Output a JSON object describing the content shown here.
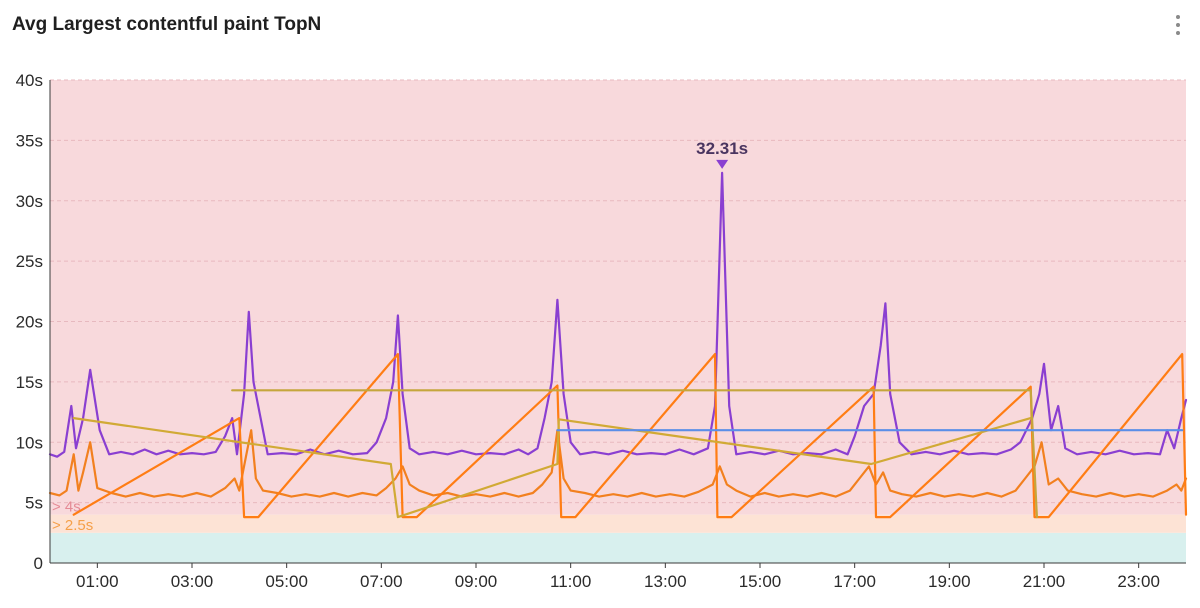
{
  "header": {
    "title": "Avg Largest contentful paint TopN",
    "menu_icon": "more-vertical-icon"
  },
  "chart_data": {
    "type": "line",
    "title": "Avg Largest contentful paint TopN",
    "xlabel": "",
    "ylabel": "",
    "x_unit": "hours",
    "xlim": [
      0,
      24
    ],
    "ylim": [
      0,
      40
    ],
    "x_ticks": [
      {
        "value": 1,
        "label": "01:00"
      },
      {
        "value": 3,
        "label": "03:00"
      },
      {
        "value": 5,
        "label": "05:00"
      },
      {
        "value": 7,
        "label": "07:00"
      },
      {
        "value": 9,
        "label": "09:00"
      },
      {
        "value": 11,
        "label": "11:00"
      },
      {
        "value": 13,
        "label": "13:00"
      },
      {
        "value": 15,
        "label": "15:00"
      },
      {
        "value": 17,
        "label": "17:00"
      },
      {
        "value": 19,
        "label": "19:00"
      },
      {
        "value": 21,
        "label": "21:00"
      },
      {
        "value": 23,
        "label": "23:00"
      }
    ],
    "y_ticks": [
      {
        "value": 0,
        "label": "0"
      },
      {
        "value": 5,
        "label": "5s"
      },
      {
        "value": 10,
        "label": "10s"
      },
      {
        "value": 15,
        "label": "15s"
      },
      {
        "value": 20,
        "label": "20s"
      },
      {
        "value": 25,
        "label": "25s"
      },
      {
        "value": 30,
        "label": "30s"
      },
      {
        "value": 35,
        "label": "35s"
      },
      {
        "value": 40,
        "label": "40s"
      }
    ],
    "grid": true,
    "bands": [
      {
        "from": 0,
        "to": 2.5,
        "color": "#d8f0ee"
      },
      {
        "from": 2.5,
        "to": 4,
        "color": "#fde3d5",
        "label": "> 2.5s",
        "label_color": "#f5a04a"
      },
      {
        "from": 4,
        "to": 40,
        "color": "#f8d9dc",
        "label": "> 4s",
        "label_color": "#e58a95"
      }
    ],
    "peak": {
      "x": 14.2,
      "y": 32.31,
      "label": "32.31s",
      "color": "#8a3fd1"
    },
    "series": [
      {
        "color": "#8a3fd1",
        "points": [
          [
            0,
            9
          ],
          [
            0.15,
            8.8
          ],
          [
            0.3,
            9.2
          ],
          [
            0.45,
            13
          ],
          [
            0.55,
            9.5
          ],
          [
            0.7,
            12
          ],
          [
            0.85,
            16
          ],
          [
            1.05,
            11
          ],
          [
            1.25,
            9
          ],
          [
            1.5,
            9.2
          ],
          [
            1.75,
            9
          ],
          [
            2,
            9.4
          ],
          [
            2.25,
            9
          ],
          [
            2.5,
            9.3
          ],
          [
            2.75,
            9
          ],
          [
            3,
            9.1
          ],
          [
            3.25,
            9
          ],
          [
            3.5,
            9.2
          ],
          [
            3.7,
            10.5
          ],
          [
            3.85,
            12
          ],
          [
            3.95,
            9
          ],
          [
            4.1,
            14
          ],
          [
            4.2,
            20.8
          ],
          [
            4.3,
            15
          ],
          [
            4.45,
            12
          ],
          [
            4.6,
            9
          ],
          [
            4.9,
            9.1
          ],
          [
            5.2,
            9
          ],
          [
            5.5,
            9.4
          ],
          [
            5.8,
            9
          ],
          [
            6.1,
            9.3
          ],
          [
            6.4,
            9
          ],
          [
            6.7,
            9.1
          ],
          [
            6.9,
            10
          ],
          [
            7.1,
            12
          ],
          [
            7.25,
            15
          ],
          [
            7.35,
            20.5
          ],
          [
            7.45,
            14
          ],
          [
            7.6,
            9.5
          ],
          [
            7.8,
            9
          ],
          [
            8.1,
            9.2
          ],
          [
            8.4,
            9
          ],
          [
            8.7,
            9.3
          ],
          [
            9,
            9
          ],
          [
            9.3,
            9.1
          ],
          [
            9.6,
            9
          ],
          [
            9.9,
            9.4
          ],
          [
            10.1,
            9
          ],
          [
            10.3,
            9.5
          ],
          [
            10.45,
            12
          ],
          [
            10.6,
            15
          ],
          [
            10.72,
            21.8
          ],
          [
            10.85,
            14
          ],
          [
            11,
            10
          ],
          [
            11.2,
            9
          ],
          [
            11.5,
            9.2
          ],
          [
            11.8,
            9
          ],
          [
            12.1,
            9.3
          ],
          [
            12.4,
            9
          ],
          [
            12.7,
            9.1
          ],
          [
            13,
            9
          ],
          [
            13.3,
            9.4
          ],
          [
            13.6,
            9
          ],
          [
            13.9,
            9.5
          ],
          [
            14.05,
            13
          ],
          [
            14.2,
            32.31
          ],
          [
            14.35,
            13
          ],
          [
            14.5,
            9
          ],
          [
            14.8,
            9.2
          ],
          [
            15.1,
            9
          ],
          [
            15.4,
            9.3
          ],
          [
            15.7,
            9
          ],
          [
            16,
            9.1
          ],
          [
            16.3,
            9
          ],
          [
            16.6,
            9.4
          ],
          [
            16.85,
            9
          ],
          [
            17,
            10.5
          ],
          [
            17.2,
            13
          ],
          [
            17.4,
            14
          ],
          [
            17.55,
            18
          ],
          [
            17.65,
            21.5
          ],
          [
            17.75,
            14
          ],
          [
            17.95,
            10
          ],
          [
            18.2,
            9
          ],
          [
            18.5,
            9.2
          ],
          [
            18.8,
            9
          ],
          [
            19.1,
            9.3
          ],
          [
            19.4,
            9
          ],
          [
            19.7,
            9.1
          ],
          [
            20,
            9
          ],
          [
            20.3,
            9.4
          ],
          [
            20.5,
            10
          ],
          [
            20.75,
            12
          ],
          [
            20.9,
            14
          ],
          [
            21,
            16.5
          ],
          [
            21.15,
            11
          ],
          [
            21.3,
            13
          ],
          [
            21.45,
            9.5
          ],
          [
            21.7,
            9
          ],
          [
            22,
            9.2
          ],
          [
            22.3,
            9
          ],
          [
            22.6,
            9.3
          ],
          [
            22.9,
            9
          ],
          [
            23.2,
            9.1
          ],
          [
            23.45,
            9
          ],
          [
            23.6,
            11
          ],
          [
            23.75,
            9.5
          ],
          [
            23.9,
            12
          ],
          [
            24,
            13.5
          ]
        ]
      },
      {
        "color": "#f2801f",
        "points": [
          [
            0,
            5.8
          ],
          [
            0.2,
            5.6
          ],
          [
            0.35,
            6
          ],
          [
            0.5,
            9
          ],
          [
            0.6,
            6
          ],
          [
            0.7,
            7.5
          ],
          [
            0.85,
            10
          ],
          [
            1,
            6.2
          ],
          [
            1.3,
            5.8
          ],
          [
            1.6,
            5.5
          ],
          [
            1.9,
            5.8
          ],
          [
            2.2,
            5.5
          ],
          [
            2.5,
            5.7
          ],
          [
            2.8,
            5.5
          ],
          [
            3.1,
            5.8
          ],
          [
            3.4,
            5.5
          ],
          [
            3.7,
            6.2
          ],
          [
            3.9,
            7
          ],
          [
            4,
            6
          ],
          [
            4.15,
            9
          ],
          [
            4.25,
            11
          ],
          [
            4.35,
            7
          ],
          [
            4.5,
            6
          ],
          [
            4.8,
            5.8
          ],
          [
            5.1,
            5.5
          ],
          [
            5.4,
            5.7
          ],
          [
            5.7,
            5.5
          ],
          [
            6,
            5.8
          ],
          [
            6.3,
            5.5
          ],
          [
            6.6,
            5.8
          ],
          [
            6.9,
            5.6
          ],
          [
            7.1,
            6.2
          ],
          [
            7.3,
            7
          ],
          [
            7.45,
            8
          ],
          [
            7.6,
            6.5
          ],
          [
            7.8,
            6
          ],
          [
            8.1,
            5.6
          ],
          [
            8.4,
            5.8
          ],
          [
            8.7,
            5.5
          ],
          [
            9,
            5.7
          ],
          [
            9.3,
            5.5
          ],
          [
            9.6,
            5.8
          ],
          [
            9.9,
            5.5
          ],
          [
            10.2,
            5.8
          ],
          [
            10.4,
            6.5
          ],
          [
            10.6,
            7.5
          ],
          [
            10.72,
            11
          ],
          [
            10.85,
            7
          ],
          [
            11,
            6
          ],
          [
            11.3,
            5.8
          ],
          [
            11.6,
            5.5
          ],
          [
            11.9,
            5.7
          ],
          [
            12.2,
            5.5
          ],
          [
            12.5,
            5.8
          ],
          [
            12.8,
            5.5
          ],
          [
            13.1,
            5.7
          ],
          [
            13.4,
            5.5
          ],
          [
            13.7,
            5.9
          ],
          [
            14,
            6.5
          ],
          [
            14.15,
            8
          ],
          [
            14.3,
            6.5
          ],
          [
            14.5,
            6
          ],
          [
            14.8,
            5.5
          ],
          [
            15.1,
            5.8
          ],
          [
            15.4,
            5.5
          ],
          [
            15.7,
            5.7
          ],
          [
            16,
            5.5
          ],
          [
            16.3,
            5.8
          ],
          [
            16.6,
            5.5
          ],
          [
            16.9,
            6
          ],
          [
            17.1,
            7
          ],
          [
            17.3,
            8
          ],
          [
            17.45,
            6.5
          ],
          [
            17.6,
            7.5
          ],
          [
            17.75,
            6
          ],
          [
            18,
            5.7
          ],
          [
            18.3,
            5.5
          ],
          [
            18.6,
            5.8
          ],
          [
            18.9,
            5.5
          ],
          [
            19.2,
            5.7
          ],
          [
            19.5,
            5.5
          ],
          [
            19.8,
            5.8
          ],
          [
            20.1,
            5.5
          ],
          [
            20.4,
            6
          ],
          [
            20.6,
            7
          ],
          [
            20.8,
            8
          ],
          [
            20.95,
            10
          ],
          [
            21.1,
            6.5
          ],
          [
            21.3,
            7
          ],
          [
            21.5,
            6
          ],
          [
            21.8,
            5.7
          ],
          [
            22.1,
            5.5
          ],
          [
            22.4,
            5.8
          ],
          [
            22.7,
            5.5
          ],
          [
            23,
            5.7
          ],
          [
            23.3,
            5.5
          ],
          [
            23.6,
            6
          ],
          [
            23.8,
            6.5
          ],
          [
            23.9,
            6
          ],
          [
            24,
            7
          ]
        ]
      },
      {
        "color": "#ff7d14",
        "points": [
          [
            0.5,
            4
          ],
          [
            4,
            12
          ],
          [
            4.1,
            3.8
          ],
          [
            4.4,
            3.8
          ],
          [
            7.35,
            17.3
          ],
          [
            7.45,
            3.8
          ],
          [
            7.75,
            3.8
          ],
          [
            10.72,
            14.7
          ],
          [
            10.8,
            3.8
          ],
          [
            11.1,
            3.8
          ],
          [
            14.05,
            17.3
          ],
          [
            14.1,
            3.8
          ],
          [
            14.4,
            3.8
          ],
          [
            17.4,
            14.6
          ],
          [
            17.45,
            3.8
          ],
          [
            17.75,
            3.8
          ],
          [
            20.72,
            14.6
          ],
          [
            20.8,
            3.8
          ],
          [
            21.1,
            3.8
          ],
          [
            23.92,
            17.3
          ],
          [
            24,
            4
          ]
        ]
      },
      {
        "color": "#d1aa35",
        "points": [
          [
            0.5,
            12
          ],
          [
            7.2,
            8.2
          ],
          [
            7.35,
            3.8
          ],
          [
            10.72,
            8.2
          ],
          [
            10.75,
            11.9
          ],
          [
            17.35,
            8.2
          ],
          [
            20.72,
            12
          ]
        ]
      },
      {
        "color": "#c5a63c",
        "points": [
          [
            3.85,
            14.3
          ],
          [
            20.72,
            14.3
          ],
          [
            20.85,
            3.8
          ]
        ]
      },
      {
        "color": "#5b8ee8",
        "points": [
          [
            10.72,
            11
          ],
          [
            23.92,
            11
          ]
        ]
      }
    ]
  }
}
